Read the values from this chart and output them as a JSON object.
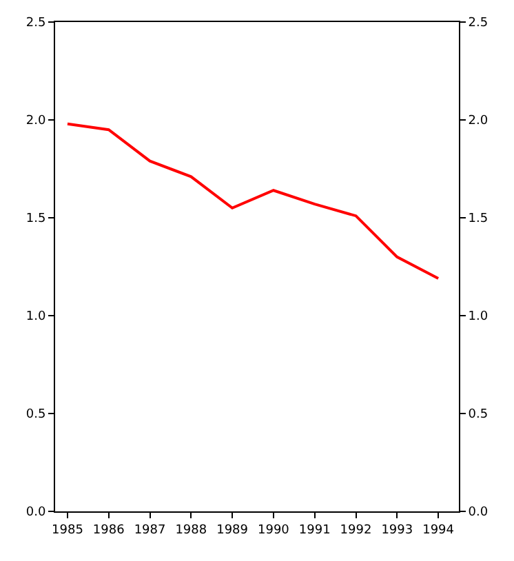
{
  "chart_data": {
    "type": "line",
    "x": [
      1985,
      1986,
      1987,
      1988,
      1989,
      1990,
      1991,
      1992,
      1993,
      1994
    ],
    "series": [
      {
        "color": "#ff0000",
        "values": [
          1.98,
          1.95,
          1.79,
          1.71,
          1.55,
          1.64,
          1.57,
          1.51,
          1.3,
          1.19
        ]
      }
    ],
    "xlim": [
      1984.7,
      1994.5
    ],
    "xticks": [
      1985,
      1986,
      1987,
      1988,
      1989,
      1990,
      1991,
      1992,
      1993,
      1994
    ],
    "ylim": [
      0,
      2.5
    ],
    "yticks": [
      {
        "value": 0,
        "label": "0.0"
      },
      {
        "value": 0.5,
        "label": "0.5"
      },
      {
        "value": 1,
        "label": "1.0"
      },
      {
        "value": 1.5,
        "label": "1.5"
      },
      {
        "value": 2,
        "label": "2.0"
      },
      {
        "value": 2.5,
        "label": "2.5"
      }
    ],
    "y2lim": [
      0,
      2.5
    ],
    "y2ticks": [
      {
        "value": 0,
        "label": "0.0"
      },
      {
        "value": 0.5,
        "label": "0.5"
      },
      {
        "value": 1,
        "label": "1.0"
      },
      {
        "value": 1.5,
        "label": "1.5"
      },
      {
        "value": 2,
        "label": "2.0"
      },
      {
        "value": 2.5,
        "label": "2.5"
      }
    ],
    "marker": "none",
    "line_style": "solid"
  }
}
